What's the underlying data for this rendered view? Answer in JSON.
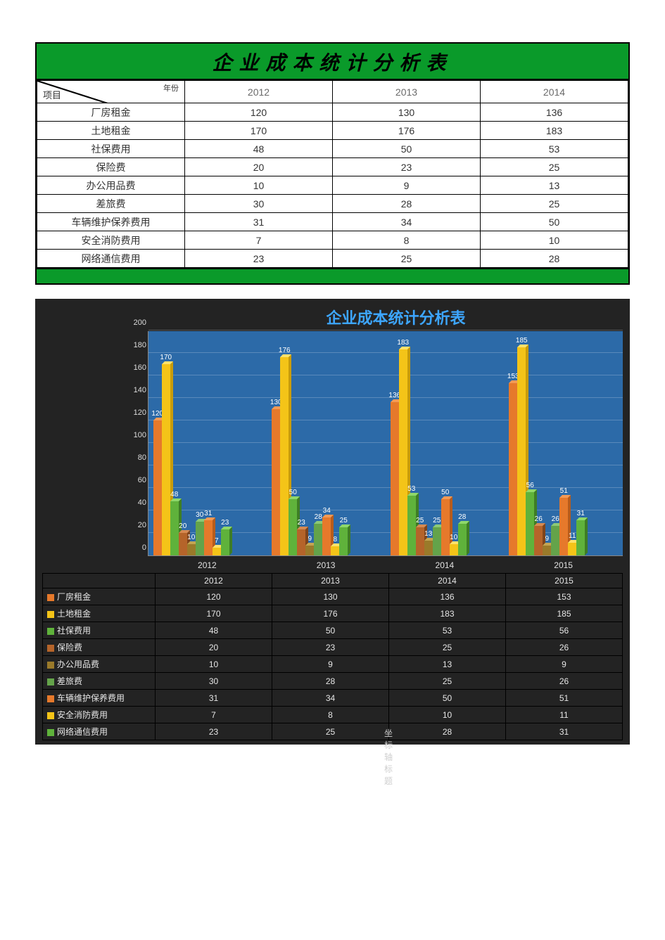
{
  "topTable": {
    "title": "企业成本统计分析表",
    "cornerYearLabel": "年份",
    "cornerItemLabel": "项目",
    "years": [
      "2012",
      "2013",
      "2014"
    ],
    "rows": [
      {
        "name": "厂房租金",
        "values": [
          120,
          130,
          136
        ]
      },
      {
        "name": "土地租金",
        "values": [
          170,
          176,
          183
        ]
      },
      {
        "name": "社保费用",
        "values": [
          48,
          50,
          53
        ]
      },
      {
        "name": "保险费",
        "values": [
          20,
          23,
          25
        ]
      },
      {
        "name": "办公用品费",
        "values": [
          10,
          9,
          13
        ]
      },
      {
        "name": "差旅费",
        "values": [
          30,
          28,
          25
        ]
      },
      {
        "name": "车辆维护保养费用",
        "values": [
          31,
          34,
          50
        ]
      },
      {
        "name": "安全消防费用",
        "values": [
          7,
          8,
          10
        ]
      },
      {
        "name": "网络通信费用",
        "values": [
          23,
          25,
          28
        ]
      }
    ],
    "titleBg": "#0a9a2a",
    "borderColor": "#000000",
    "cellBg": "#ffffff",
    "headerTextColor": "#6a6a6a",
    "textColor": "#333333",
    "titleFontSize": 28,
    "cellFontSize": 14
  },
  "chart": {
    "type": "bar",
    "title": "企业成本统计分析表",
    "titleColor": "#3da6ff",
    "titleFontSize": 22,
    "background": "#232323",
    "plotBackground": "#2c6aa8",
    "gridColor": "rgba(255,255,255,0.22)",
    "axisTextColor": "#dcdcdc",
    "valueLabelColor": "#ffffff",
    "valueLabelFontSize": 10,
    "axisFontSize": 11,
    "yAxis": {
      "min": 0,
      "max": 200,
      "step": 20
    },
    "years": [
      "2012",
      "2013",
      "2014",
      "2015"
    ],
    "axisCaption": "坐标轴标题",
    "barWidth": 12,
    "barDepth": 4,
    "groupWidthPct": 22,
    "series": [
      {
        "name": "厂房租金",
        "color": "#e6792b",
        "side": "#b75c1c",
        "top": "#f49a55",
        "values": [
          120,
          130,
          136,
          153
        ]
      },
      {
        "name": "土地租金",
        "color": "#f4c418",
        "side": "#c99c0a",
        "top": "#ffe26b",
        "values": [
          170,
          176,
          183,
          185
        ]
      },
      {
        "name": "社保费用",
        "color": "#5fb23b",
        "side": "#3e7d25",
        "top": "#8fd86a",
        "values": [
          48,
          50,
          53,
          56
        ]
      },
      {
        "name": "保险费",
        "color": "#b5642a",
        "side": "#7f441b",
        "top": "#d68a52",
        "values": [
          20,
          23,
          25,
          26
        ]
      },
      {
        "name": "办公用品费",
        "color": "#9a7a2a",
        "side": "#6e561c",
        "top": "#c4a552",
        "values": [
          10,
          9,
          13,
          9
        ]
      },
      {
        "name": "差旅费",
        "color": "#64a34a",
        "side": "#417030",
        "top": "#8cc977",
        "values": [
          30,
          28,
          25,
          26
        ]
      },
      {
        "name": "车辆维护保养费用",
        "color": "#e6792b",
        "side": "#b75c1c",
        "top": "#f49a55",
        "values": [
          31,
          34,
          50,
          51
        ]
      },
      {
        "name": "安全消防费用",
        "color": "#f4c418",
        "side": "#c99c0a",
        "top": "#ffe26b",
        "values": [
          7,
          8,
          10,
          11
        ]
      },
      {
        "name": "网络通信费用",
        "color": "#5fb23b",
        "side": "#3e7d25",
        "top": "#8fd86a",
        "values": [
          23,
          25,
          28,
          31
        ]
      }
    ],
    "plotHeightPx": 320
  }
}
